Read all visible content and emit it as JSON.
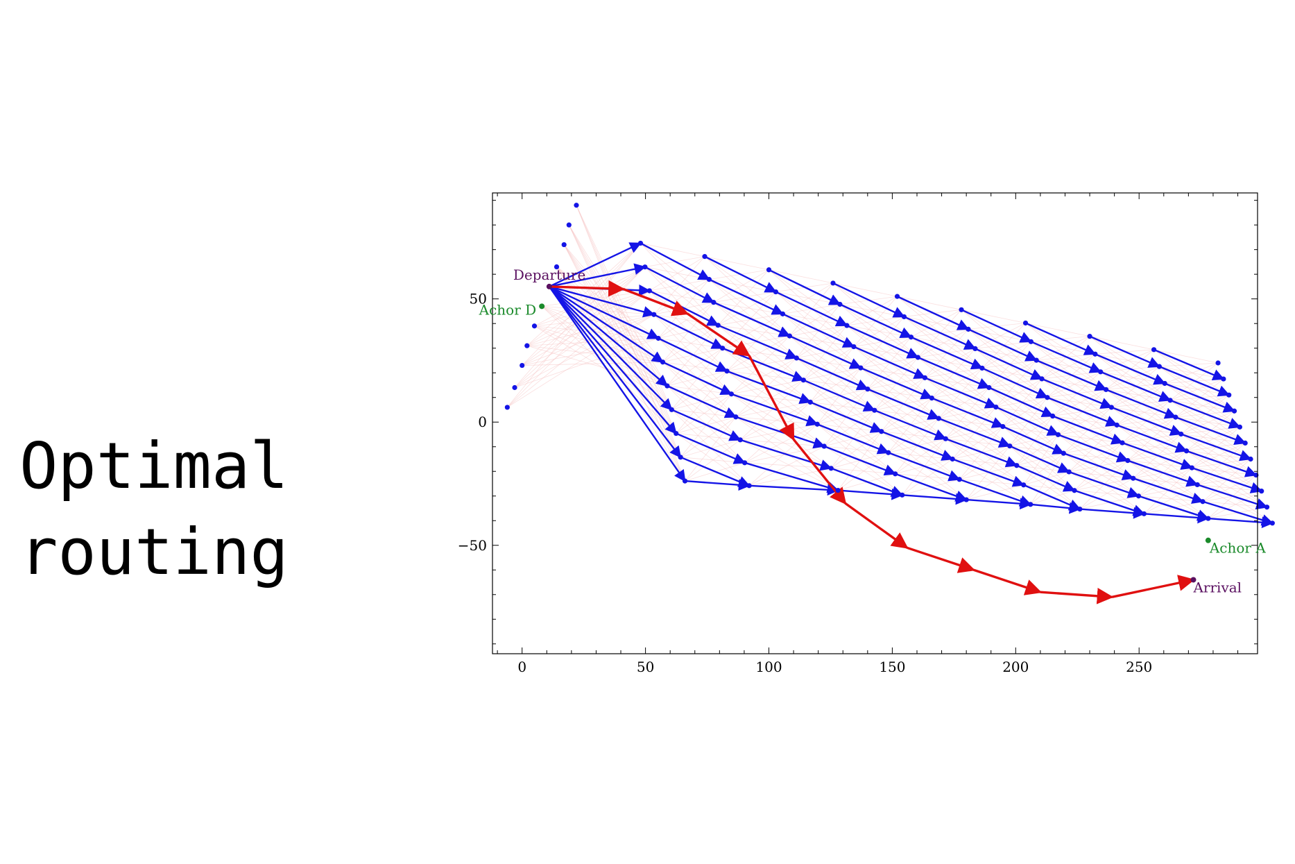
{
  "title": {
    "line1": "Optimal",
    "line2": "routing"
  },
  "colors": {
    "background": "#ffffff",
    "blue_edges": "#1414e6",
    "route": "#e01010",
    "faint_mesh": "#f6c4c4",
    "terminal_label": "#5a1060",
    "anchor_label": "#1a8a2a"
  },
  "chart_data": {
    "type": "scatter",
    "title": "",
    "xlabel": "",
    "ylabel": "",
    "xlim": [
      -12,
      298
    ],
    "ylim": [
      -94,
      93
    ],
    "x_ticks": [
      0,
      50,
      100,
      150,
      200,
      250
    ],
    "y_ticks": [
      -50,
      0,
      50
    ],
    "grid": false,
    "legend": "none",
    "labels": {
      "departure": "Departure",
      "anchor_d": "Achor D",
      "anchor_a": "Achor A",
      "arrival": "Arrival"
    },
    "points": {
      "departure": [
        11,
        55
      ],
      "anchor_d": [
        8,
        47
      ],
      "anchor_a": [
        278,
        -48
      ],
      "arrival": [
        272,
        -64
      ]
    },
    "initial_column": {
      "x": [
        -6,
        -3,
        0,
        2,
        5,
        8,
        11,
        14,
        17,
        19,
        22
      ],
      "y": [
        6,
        14,
        23,
        31,
        39,
        47,
        55,
        63,
        72,
        80,
        88
      ]
    },
    "optimal_route": [
      [
        11,
        55
      ],
      [
        41,
        54
      ],
      [
        67,
        44
      ],
      [
        92,
        27
      ],
      [
        110,
        -7
      ],
      [
        131,
        -33
      ],
      [
        156,
        -51
      ],
      [
        183,
        -60
      ],
      [
        210,
        -69
      ],
      [
        239,
        -71
      ],
      [
        272,
        -64
      ]
    ]
  }
}
